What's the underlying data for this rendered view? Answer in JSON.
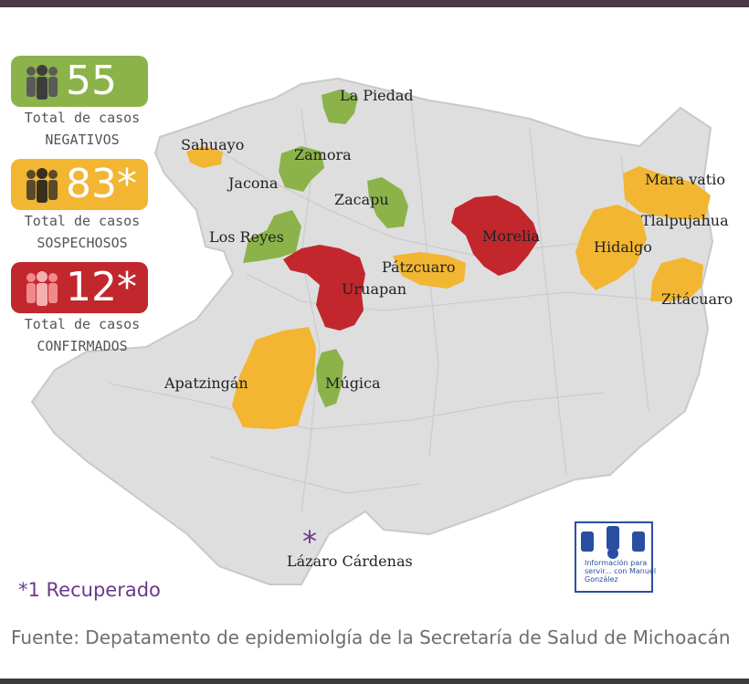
{
  "summary": [
    {
      "id": "negativos",
      "count": "55",
      "line1": "Total de casos",
      "line2": "NEGATIVOS",
      "color": "#8bb34a"
    },
    {
      "id": "sospechosos",
      "count": "83*",
      "line1": "Total de casos",
      "line2": "SOSPECHOSOS",
      "color": "#f2b632"
    },
    {
      "id": "confirmados",
      "count": "12*",
      "line1": "Total de casos",
      "line2": "CONFIRMADOS",
      "color": "#c1272d"
    }
  ],
  "map": {
    "base_color": "#dedede",
    "municipalities": [
      {
        "name": "La Piedad",
        "status": "negativo"
      },
      {
        "name": "Sahuayo",
        "status": "sospechoso"
      },
      {
        "name": "Zamora",
        "status": "negativo"
      },
      {
        "name": "Jacona",
        "status": "none"
      },
      {
        "name": "Zacapu",
        "status": "negativo"
      },
      {
        "name": "Los Reyes",
        "status": "negativo"
      },
      {
        "name": "Uruapan",
        "status": "confirmado"
      },
      {
        "name": "Pátzcuaro",
        "status": "sospechoso"
      },
      {
        "name": "Morelia",
        "status": "confirmado"
      },
      {
        "name": "Mara vatio",
        "status": "sospechoso"
      },
      {
        "name": "Tlalpujahua",
        "status": "sospechoso"
      },
      {
        "name": "Hidalgo",
        "status": "sospechoso"
      },
      {
        "name": "Zitácuaro",
        "status": "sospechoso"
      },
      {
        "name": "Apatzingán",
        "status": "sospechoso"
      },
      {
        "name": "Múgica",
        "status": "negativo"
      },
      {
        "name": "Lázaro Cárdenas",
        "status": "none"
      }
    ],
    "recovered_marker": "*"
  },
  "footnote": "*1 Recuperado",
  "source": "Fuente: Depatamento de epidemiolgía de la Secretaría de Salud de Michoacán",
  "watermark": "Información para servir... con Manuel González"
}
